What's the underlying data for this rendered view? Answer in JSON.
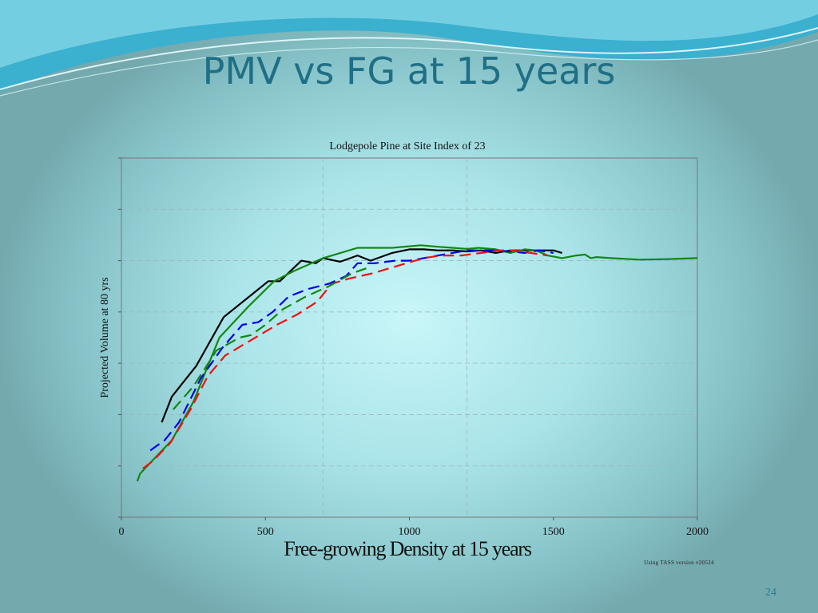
{
  "slide": {
    "title": "PMV vs FG at 15 years",
    "page_number": "24",
    "note": "Using TASS version v20524"
  },
  "colors": {
    "title": "#1f6f86",
    "series": [
      "#000000",
      "#118811",
      "#0000ee",
      "#ee1111",
      "#118811"
    ]
  },
  "chart_data": {
    "type": "line",
    "title": "Lodgepole Pine at Site Index of 23",
    "xlabel": "Free-growing Density at 15 years",
    "ylabel": "Projected Volume at 80 yrs",
    "xlim": [
      0,
      2000
    ],
    "ylim": [
      0,
      7
    ],
    "xticks": [
      0,
      500,
      1000,
      1500,
      2000
    ],
    "yticks_labeled": false,
    "grid": true,
    "series": [
      {
        "style": "solid-black",
        "x": [
          140,
          175,
          260,
          355,
          455,
          510,
          550,
          625,
          675,
          700,
          760,
          820,
          865,
          940,
          1000,
          1050,
          1100,
          1150,
          1200,
          1250,
          1300,
          1350,
          1400,
          1450,
          1500,
          1530
        ],
        "y": [
          1.85,
          2.35,
          2.95,
          3.9,
          4.35,
          4.6,
          4.6,
          5.0,
          4.95,
          5.05,
          4.98,
          5.1,
          5.0,
          5.15,
          5.22,
          5.22,
          5.2,
          5.2,
          5.18,
          5.2,
          5.15,
          5.2,
          5.2,
          5.2,
          5.2,
          5.15
        ]
      },
      {
        "style": "solid-green",
        "x": [
          55,
          65,
          90,
          175,
          250,
          340,
          440,
          530,
          600,
          700,
          820,
          940,
          1040,
          1100,
          1150,
          1200,
          1240,
          1300,
          1350,
          1400,
          1440,
          1480,
          1530,
          1580,
          1610,
          1630,
          1650,
          1700,
          1800,
          1900,
          2000
        ],
        "y": [
          0.7,
          0.85,
          1.0,
          1.5,
          2.25,
          3.5,
          4.1,
          4.6,
          4.8,
          5.05,
          5.25,
          5.25,
          5.3,
          5.27,
          5.25,
          5.23,
          5.25,
          5.22,
          5.15,
          5.22,
          5.2,
          5.1,
          5.05,
          5.1,
          5.12,
          5.05,
          5.07,
          5.05,
          5.02,
          5.03,
          5.05
        ]
      },
      {
        "style": "dashed-blue",
        "x": [
          100,
          150,
          200,
          275,
          350,
          420,
          475,
          525,
          580,
          650,
          720,
          780,
          820,
          880,
          950,
          1000,
          1050,
          1100,
          1150,
          1200,
          1250,
          1300,
          1350,
          1400,
          1450,
          1500
        ],
        "y": [
          1.3,
          1.5,
          1.85,
          2.7,
          3.3,
          3.75,
          3.8,
          4.0,
          4.3,
          4.45,
          4.55,
          4.7,
          4.95,
          4.95,
          5.0,
          5.0,
          5.05,
          5.1,
          5.15,
          5.2,
          5.2,
          5.2,
          5.18,
          5.15,
          5.2,
          5.15
        ]
      },
      {
        "style": "dashed-red",
        "x": [
          75,
          110,
          170,
          240,
          300,
          360,
          420,
          480,
          540,
          610,
          680,
          730,
          790,
          870,
          930,
          990,
          1050,
          1110,
          1180,
          1250,
          1310,
          1360,
          1420,
          1480
        ],
        "y": [
          0.95,
          1.1,
          1.45,
          2.1,
          2.75,
          3.15,
          3.35,
          3.55,
          3.75,
          3.95,
          4.2,
          4.55,
          4.65,
          4.75,
          4.85,
          4.95,
          5.05,
          5.1,
          5.1,
          5.15,
          5.2,
          5.2,
          5.15,
          5.1
        ]
      },
      {
        "style": "dashed-green",
        "x": [
          180,
          250,
          330,
          410,
          450,
          500,
          560,
          640,
          720,
          800,
          850
        ],
        "y": [
          2.1,
          2.55,
          3.25,
          3.5,
          3.55,
          3.75,
          4.05,
          4.3,
          4.5,
          4.75,
          4.85
        ]
      }
    ],
    "annotations": [
      "Using TASS version v20524"
    ]
  }
}
